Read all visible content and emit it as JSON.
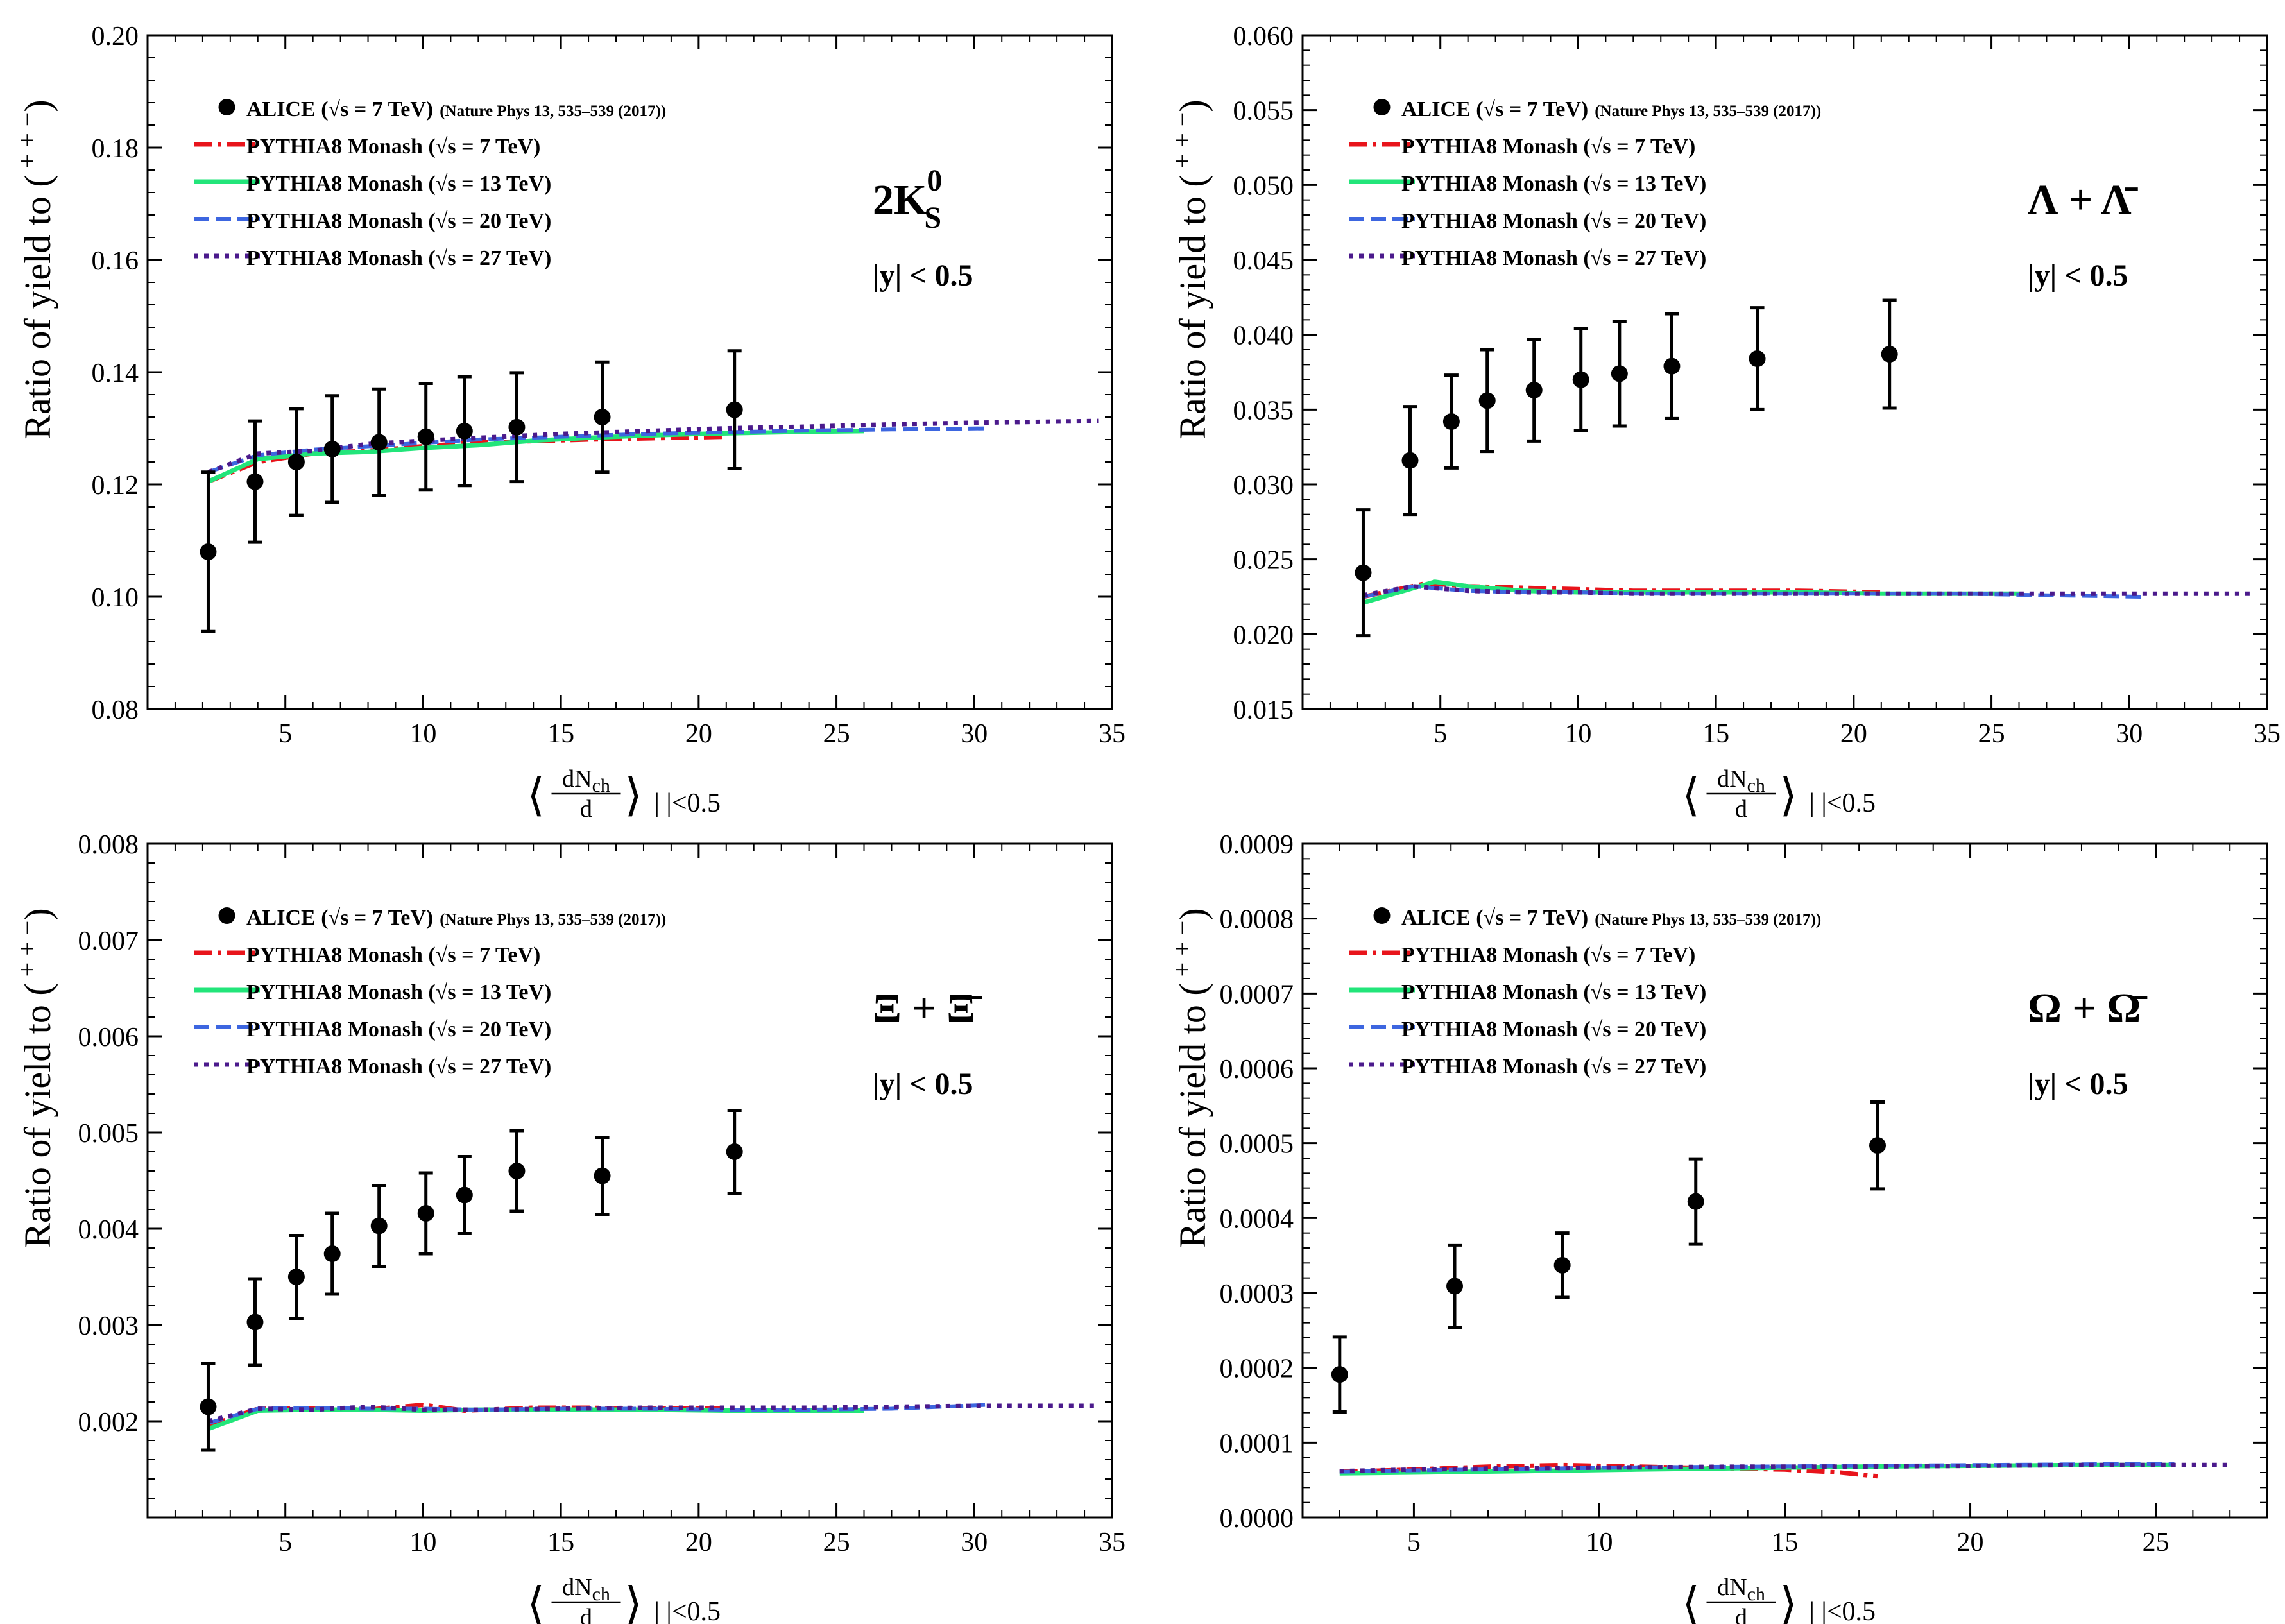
{
  "figure": {
    "y_title": "Ratio of yield to (",
    "y_title_sup": "+ + −",
    "y_title_close": ")",
    "x_title_num": "dN",
    "x_title_num_sub": "ch",
    "x_title_den": "d",
    "x_title_tail": "|   |<0.5",
    "legend_entries": [
      {
        "label": "ALICE (√s =  7 TeV)",
        "ref": "(Nature Phys 13, 535–539 (2017))",
        "style": "marker",
        "color": "#000000"
      },
      {
        "label": "PYTHIA8 Monash (√s =  7 TeV)",
        "ref": "",
        "style": "dashdot",
        "color": "#e8141b"
      },
      {
        "label": "PYTHIA8 Monash (√s =  13 TeV)",
        "ref": "",
        "style": "solid",
        "color": "#22e57a"
      },
      {
        "label": "PYTHIA8 Monash (√s =  20 TeV)",
        "ref": "",
        "style": "dashed",
        "color": "#3d66e0"
      },
      {
        "label": "PYTHIA8 Monash (√s =  27 TeV)",
        "ref": "",
        "style": "dotted",
        "color": "#4b1a8c"
      }
    ]
  },
  "chart_data": [
    {
      "type": "scatter+line",
      "panel": "top-left",
      "annotation_main": "2K",
      "annotation_sup": "0",
      "annotation_sub": "S",
      "annotation_cut": "|y| < 0.5",
      "xlim": [
        0,
        35
      ],
      "ylim": [
        0.08,
        0.2
      ],
      "xticks": [
        5,
        10,
        15,
        20,
        25,
        30,
        35
      ],
      "xtick_labels": [
        "5",
        "10",
        "15",
        "20",
        "25",
        "30",
        "35"
      ],
      "yticks": [
        0.08,
        0.1,
        0.12,
        0.14,
        0.16,
        0.18,
        0.2
      ],
      "ytick_labels": [
        "0.08",
        "0.10",
        "0.12",
        "0.14",
        "0.16",
        "0.18",
        "0.20"
      ],
      "data": {
        "x": [
          2.2,
          3.9,
          5.4,
          6.7,
          8.4,
          10.1,
          11.5,
          13.4,
          16.5,
          21.3
        ],
        "y": [
          0.108,
          0.1205,
          0.124,
          0.1263,
          0.1275,
          0.1285,
          0.1295,
          0.1302,
          0.132,
          0.1333
        ],
        "err": [
          0.0142,
          0.0108,
          0.0095,
          0.0095,
          0.0095,
          0.0095,
          0.0097,
          0.0097,
          0.0098,
          0.0105
        ]
      },
      "series": [
        {
          "name": "PYTHIA8 Monash (7 TeV)",
          "x": [
            2.2,
            4,
            6,
            8,
            10,
            12,
            14,
            16,
            18,
            21
          ],
          "y": [
            0.1205,
            0.124,
            0.1255,
            0.126,
            0.1268,
            0.1275,
            0.1277,
            0.128,
            0.1282,
            0.1285
          ]
        },
        {
          "name": "PYTHIA8 Monash (13 TeV)",
          "x": [
            2.2,
            4,
            6,
            8,
            10,
            12,
            14,
            16,
            18,
            20,
            22,
            24,
            26
          ],
          "y": [
            0.1205,
            0.1245,
            0.1255,
            0.1258,
            0.1265,
            0.127,
            0.1278,
            0.1283,
            0.1287,
            0.129,
            0.1292,
            0.1294,
            0.1295
          ]
        },
        {
          "name": "PYTHIA8 Monash (20 TeV)",
          "x": [
            2.2,
            4,
            6,
            8,
            10,
            12,
            15,
            18,
            21,
            24,
            27,
            30.5
          ],
          "y": [
            0.1222,
            0.1252,
            0.1262,
            0.1268,
            0.1274,
            0.128,
            0.1285,
            0.129,
            0.1293,
            0.1296,
            0.1298,
            0.13
          ]
        },
        {
          "name": "PYTHIA8 Monash (27 TeV)",
          "x": [
            2.2,
            4,
            6,
            8,
            10,
            12,
            15,
            18,
            21,
            24,
            27,
            30,
            34.5
          ],
          "y": [
            0.1222,
            0.1255,
            0.126,
            0.1272,
            0.1278,
            0.1283,
            0.129,
            0.1295,
            0.13,
            0.1303,
            0.1307,
            0.131,
            0.1313
          ]
        }
      ]
    },
    {
      "type": "scatter+line",
      "panel": "top-right",
      "annotation_main": "Λ + Λ̄",
      "annotation_sup": "",
      "annotation_sub": "",
      "annotation_cut": "|y| < 0.5",
      "xlim": [
        0,
        35
      ],
      "ylim": [
        0.015,
        0.06
      ],
      "xticks": [
        5,
        10,
        15,
        20,
        25,
        30,
        35
      ],
      "xtick_labels": [
        "5",
        "10",
        "15",
        "20",
        "25",
        "30",
        "35"
      ],
      "yticks": [
        0.015,
        0.02,
        0.025,
        0.03,
        0.035,
        0.04,
        0.045,
        0.05,
        0.055,
        0.06
      ],
      "ytick_labels": [
        "0.015",
        "0.020",
        "0.025",
        "0.030",
        "0.035",
        "0.040",
        "0.045",
        "0.050",
        "0.055",
        "0.060"
      ],
      "data": {
        "x": [
          2.2,
          3.9,
          5.4,
          6.7,
          8.4,
          10.1,
          11.5,
          13.4,
          16.5,
          21.3
        ],
        "y": [
          0.0241,
          0.0316,
          0.0342,
          0.0356,
          0.0363,
          0.037,
          0.0374,
          0.0379,
          0.0384,
          0.0387
        ],
        "err": [
          0.0042,
          0.0036,
          0.0031,
          0.0034,
          0.0034,
          0.0034,
          0.0035,
          0.0035,
          0.0034,
          0.0036
        ]
      },
      "series": [
        {
          "name": "PYTHIA8 Monash (7 TeV)",
          "x": [
            2.2,
            4.5,
            6,
            8,
            10,
            12,
            14,
            16,
            18,
            21
          ],
          "y": [
            0.0225,
            0.0234,
            0.0232,
            0.0231,
            0.023,
            0.0229,
            0.0229,
            0.0229,
            0.0229,
            0.0228
          ]
        },
        {
          "name": "PYTHIA8 Monash (13 TeV)",
          "x": [
            2.2,
            4.8,
            6,
            8,
            10,
            12,
            15,
            18,
            21,
            24,
            26
          ],
          "y": [
            0.0221,
            0.0235,
            0.0232,
            0.0229,
            0.0228,
            0.0228,
            0.0228,
            0.0228,
            0.0227,
            0.0227,
            0.0227
          ]
        },
        {
          "name": "PYTHIA8 Monash (20 TeV)",
          "x": [
            2.2,
            4,
            6,
            8,
            10,
            12,
            15,
            18,
            21,
            24,
            27,
            30.5
          ],
          "y": [
            0.0225,
            0.0232,
            0.0229,
            0.0228,
            0.0228,
            0.0227,
            0.0227,
            0.0227,
            0.0227,
            0.0227,
            0.0226,
            0.0225
          ]
        },
        {
          "name": "PYTHIA8 Monash (27 TeV)",
          "x": [
            2.2,
            4,
            6,
            8,
            10,
            12,
            15,
            18,
            21,
            24,
            27,
            30,
            34.5
          ],
          "y": [
            0.0226,
            0.0232,
            0.0229,
            0.0228,
            0.0228,
            0.0227,
            0.0227,
            0.0227,
            0.0227,
            0.0227,
            0.0227,
            0.0227,
            0.0227
          ]
        }
      ]
    },
    {
      "type": "scatter+line",
      "panel": "bottom-left",
      "annotation_main": "Ξ + Ξ̄",
      "annotation_sup": "",
      "annotation_sub": "",
      "annotation_cut": "|y| < 0.5",
      "xlim": [
        0,
        35
      ],
      "ylim": [
        0.001,
        0.008
      ],
      "xticks": [
        5,
        10,
        15,
        20,
        25,
        30,
        35
      ],
      "xtick_labels": [
        "5",
        "10",
        "15",
        "20",
        "25",
        "30",
        "35"
      ],
      "yticks": [
        0.002,
        0.003,
        0.004,
        0.005,
        0.006,
        0.007,
        0.008
      ],
      "ytick_labels": [
        "0.002",
        "0.003",
        "0.004",
        "0.005",
        "0.006",
        "0.007",
        "0.008"
      ],
      "data": {
        "x": [
          2.2,
          3.9,
          5.4,
          6.7,
          8.4,
          10.1,
          11.5,
          13.4,
          16.5,
          21.3
        ],
        "y": [
          0.00215,
          0.00303,
          0.0035,
          0.00374,
          0.00403,
          0.00416,
          0.00435,
          0.0046,
          0.00455,
          0.0048
        ],
        "err": [
          0.00045,
          0.00045,
          0.00043,
          0.00042,
          0.00042,
          0.00042,
          0.0004,
          0.00042,
          0.0004,
          0.00043
        ]
      },
      "series": [
        {
          "name": "PYTHIA8 Monash (7 TeV)",
          "x": [
            2.2,
            4,
            6,
            8,
            10,
            11.5,
            14,
            16,
            18,
            21
          ],
          "y": [
            0.00195,
            0.00213,
            0.00213,
            0.00212,
            0.00217,
            0.00211,
            0.00214,
            0.00214,
            0.00213,
            0.00213
          ]
        },
        {
          "name": "PYTHIA8 Monash (13 TeV)",
          "x": [
            2.2,
            4,
            6,
            8,
            10,
            12,
            15,
            18,
            21,
            24,
            26
          ],
          "y": [
            0.00192,
            0.00211,
            0.00212,
            0.00212,
            0.00211,
            0.00212,
            0.00212,
            0.00212,
            0.00211,
            0.00211,
            0.00211
          ]
        },
        {
          "name": "PYTHIA8 Monash (20 TeV)",
          "x": [
            2.2,
            4,
            6,
            8,
            10,
            12,
            15,
            18,
            21,
            24,
            27,
            30.5
          ],
          "y": [
            0.00198,
            0.00213,
            0.00214,
            0.00213,
            0.00213,
            0.00212,
            0.00213,
            0.00213,
            0.00212,
            0.00212,
            0.00213,
            0.00217
          ]
        },
        {
          "name": "PYTHIA8 Monash (27 TeV)",
          "x": [
            2.2,
            4,
            6,
            8,
            10,
            12,
            15,
            18,
            21,
            24,
            27,
            30,
            34.5
          ],
          "y": [
            0.002,
            0.00213,
            0.00212,
            0.00215,
            0.00212,
            0.00212,
            0.00213,
            0.00214,
            0.00214,
            0.00214,
            0.00215,
            0.00216,
            0.00216
          ]
        }
      ]
    },
    {
      "type": "scatter+line",
      "panel": "bottom-right",
      "annotation_main": "Ω + Ω̄",
      "annotation_sup": "",
      "annotation_sub": "",
      "annotation_cut": "|y| < 0.5",
      "xlim": [
        2,
        28
      ],
      "ylim": [
        0.0,
        0.0009
      ],
      "xticks": [
        5,
        10,
        15,
        20,
        25
      ],
      "xtick_labels": [
        "5",
        "10",
        "15",
        "20",
        "25"
      ],
      "yticks": [
        0.0,
        0.0001,
        0.0002,
        0.0003,
        0.0004,
        0.0005,
        0.0006,
        0.0007,
        0.0008,
        0.0009
      ],
      "ytick_labels": [
        "0.0000",
        "0.0001",
        "0.0002",
        "0.0003",
        "0.0004",
        "0.0005",
        "0.0006",
        "0.0007",
        "0.0008",
        "0.0009"
      ],
      "data": {
        "x": [
          3.0,
          6.1,
          9.0,
          12.6,
          17.5
        ],
        "y": [
          0.000191,
          0.000309,
          0.000337,
          0.000422,
          0.000497
        ],
        "err": [
          5e-05,
          5.5e-05,
          4.3e-05,
          5.7e-05,
          5.8e-05
        ]
      },
      "series": [
        {
          "name": "PYTHIA8 Monash (7 TeV)",
          "x": [
            3,
            5,
            7,
            9,
            11,
            13,
            15,
            16.5,
            17.5
          ],
          "y": [
            6.1e-05,
            6.4e-05,
            6.8e-05,
            7e-05,
            6.8e-05,
            6.6e-05,
            6.4e-05,
            6e-05,
            5.5e-05
          ]
        },
        {
          "name": "PYTHIA8 Monash (13 TeV)",
          "x": [
            3,
            5,
            8,
            11,
            14,
            17,
            20,
            23,
            25.5
          ],
          "y": [
            5.9e-05,
            6e-05,
            6.2e-05,
            6.4e-05,
            6.6e-05,
            6.8e-05,
            6.9e-05,
            7e-05,
            7e-05
          ]
        },
        {
          "name": "PYTHIA8 Monash (20 TeV)",
          "x": [
            3,
            5,
            8,
            11,
            14,
            17,
            20,
            23,
            25.5
          ],
          "y": [
            6.1e-05,
            6.3e-05,
            6.5e-05,
            6.7e-05,
            6.8e-05,
            6.9e-05,
            7e-05,
            7.1e-05,
            7.2e-05
          ]
        },
        {
          "name": "PYTHIA8 Monash (27 TeV)",
          "x": [
            3,
            5,
            8,
            11,
            14,
            17,
            20,
            23,
            27
          ],
          "y": [
            6.2e-05,
            6.4e-05,
            6.6e-05,
            6.7e-05,
            6.8e-05,
            6.8e-05,
            6.9e-05,
            7e-05,
            7e-05
          ]
        }
      ]
    }
  ]
}
